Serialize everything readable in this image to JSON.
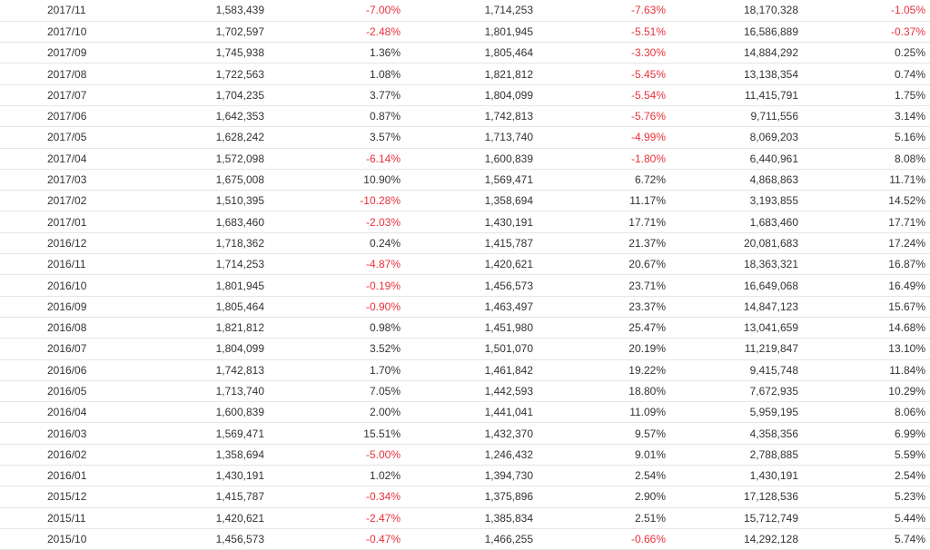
{
  "colors": {
    "negative": "#e8323c",
    "text": "#333333",
    "rule": "#e6e6e6"
  },
  "rows": [
    [
      "2017/11",
      "1,583,439",
      "-7.00%",
      "1,714,253",
      "-7.63%",
      "18,170,328",
      "-1.05%"
    ],
    [
      "2017/10",
      "1,702,597",
      "-2.48%",
      "1,801,945",
      "-5.51%",
      "16,586,889",
      "-0.37%"
    ],
    [
      "2017/09",
      "1,745,938",
      "1.36%",
      "1,805,464",
      "-3.30%",
      "14,884,292",
      "0.25%"
    ],
    [
      "2017/08",
      "1,722,563",
      "1.08%",
      "1,821,812",
      "-5.45%",
      "13,138,354",
      "0.74%"
    ],
    [
      "2017/07",
      "1,704,235",
      "3.77%",
      "1,804,099",
      "-5.54%",
      "11,415,791",
      "1.75%"
    ],
    [
      "2017/06",
      "1,642,353",
      "0.87%",
      "1,742,813",
      "-5.76%",
      "9,711,556",
      "3.14%"
    ],
    [
      "2017/05",
      "1,628,242",
      "3.57%",
      "1,713,740",
      "-4.99%",
      "8,069,203",
      "5.16%"
    ],
    [
      "2017/04",
      "1,572,098",
      "-6.14%",
      "1,600,839",
      "-1.80%",
      "6,440,961",
      "8.08%"
    ],
    [
      "2017/03",
      "1,675,008",
      "10.90%",
      "1,569,471",
      "6.72%",
      "4,868,863",
      "11.71%"
    ],
    [
      "2017/02",
      "1,510,395",
      "-10.28%",
      "1,358,694",
      "11.17%",
      "3,193,855",
      "14.52%"
    ],
    [
      "2017/01",
      "1,683,460",
      "-2.03%",
      "1,430,191",
      "17.71%",
      "1,683,460",
      "17.71%"
    ],
    [
      "2016/12",
      "1,718,362",
      "0.24%",
      "1,415,787",
      "21.37%",
      "20,081,683",
      "17.24%"
    ],
    [
      "2016/11",
      "1,714,253",
      "-4.87%",
      "1,420,621",
      "20.67%",
      "18,363,321",
      "16.87%"
    ],
    [
      "2016/10",
      "1,801,945",
      "-0.19%",
      "1,456,573",
      "23.71%",
      "16,649,068",
      "16.49%"
    ],
    [
      "2016/09",
      "1,805,464",
      "-0.90%",
      "1,463,497",
      "23.37%",
      "14,847,123",
      "15.67%"
    ],
    [
      "2016/08",
      "1,821,812",
      "0.98%",
      "1,451,980",
      "25.47%",
      "13,041,659",
      "14.68%"
    ],
    [
      "2016/07",
      "1,804,099",
      "3.52%",
      "1,501,070",
      "20.19%",
      "11,219,847",
      "13.10%"
    ],
    [
      "2016/06",
      "1,742,813",
      "1.70%",
      "1,461,842",
      "19.22%",
      "9,415,748",
      "11.84%"
    ],
    [
      "2016/05",
      "1,713,740",
      "7.05%",
      "1,442,593",
      "18.80%",
      "7,672,935",
      "10.29%"
    ],
    [
      "2016/04",
      "1,600,839",
      "2.00%",
      "1,441,041",
      "11.09%",
      "5,959,195",
      "8.06%"
    ],
    [
      "2016/03",
      "1,569,471",
      "15.51%",
      "1,432,370",
      "9.57%",
      "4,358,356",
      "6.99%"
    ],
    [
      "2016/02",
      "1,358,694",
      "-5.00%",
      "1,246,432",
      "9.01%",
      "2,788,885",
      "5.59%"
    ],
    [
      "2016/01",
      "1,430,191",
      "1.02%",
      "1,394,730",
      "2.54%",
      "1,430,191",
      "2.54%"
    ],
    [
      "2015/12",
      "1,415,787",
      "-0.34%",
      "1,375,896",
      "2.90%",
      "17,128,536",
      "5.23%"
    ],
    [
      "2015/11",
      "1,420,621",
      "-2.47%",
      "1,385,834",
      "2.51%",
      "15,712,749",
      "5.44%"
    ],
    [
      "2015/10",
      "1,456,573",
      "-0.47%",
      "1,466,255",
      "-0.66%",
      "14,292,128",
      "5.74%"
    ]
  ]
}
